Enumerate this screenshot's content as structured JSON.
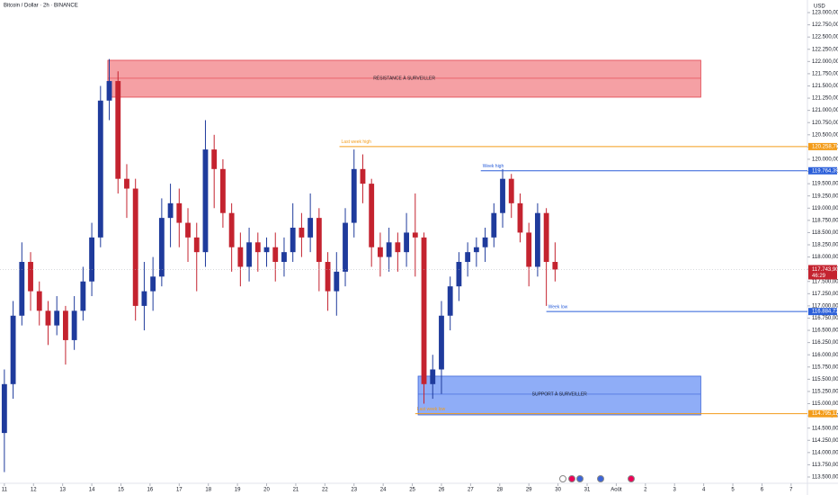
{
  "chart_data": {
    "type": "candlestick",
    "title": "Bitcoin / Dollar · 2h · BINANCE",
    "currency": "USD",
    "up_color": "#1f3b9c",
    "down_color": "#c4232f",
    "grid": false,
    "xlim": [
      -0.15,
      27.56
    ],
    "ylim": [
      113371,
      123258
    ],
    "xticks": [
      {
        "value": 0,
        "label": "11"
      },
      {
        "value": 1,
        "label": "12"
      },
      {
        "value": 2,
        "label": "13"
      },
      {
        "value": 3,
        "label": "14"
      },
      {
        "value": 4,
        "label": "15"
      },
      {
        "value": 5,
        "label": "16"
      },
      {
        "value": 6,
        "label": "17"
      },
      {
        "value": 7,
        "label": "18"
      },
      {
        "value": 8,
        "label": "19"
      },
      {
        "value": 9,
        "label": "20"
      },
      {
        "value": 10,
        "label": "21"
      },
      {
        "value": 11,
        "label": "22"
      },
      {
        "value": 12,
        "label": "23"
      },
      {
        "value": 13,
        "label": "24"
      },
      {
        "value": 14,
        "label": "25"
      },
      {
        "value": 15,
        "label": "26"
      },
      {
        "value": 16,
        "label": "27"
      },
      {
        "value": 17,
        "label": "28"
      },
      {
        "value": 18,
        "label": "29"
      },
      {
        "value": 19,
        "label": "30"
      },
      {
        "value": 20,
        "label": "31"
      },
      {
        "value": 21,
        "label": "Août"
      },
      {
        "value": 22,
        "label": "2"
      },
      {
        "value": 23,
        "label": "3"
      },
      {
        "value": 24,
        "label": "4"
      },
      {
        "value": 25,
        "label": "5"
      },
      {
        "value": 26,
        "label": "6"
      },
      {
        "value": 27,
        "label": "7"
      }
    ],
    "yticks": [
      {
        "value": 113500,
        "label": "113.500,00"
      },
      {
        "value": 113750,
        "label": "113.750,00"
      },
      {
        "value": 114000,
        "label": "114.000,00"
      },
      {
        "value": 114250,
        "label": "114.250,00"
      },
      {
        "value": 114500,
        "label": "114.500,00"
      },
      {
        "value": 114750,
        "label": "114.750,00"
      },
      {
        "value": 115000,
        "label": "115.000,00"
      },
      {
        "value": 115250,
        "label": "115.250,00"
      },
      {
        "value": 115500,
        "label": "115.500,00"
      },
      {
        "value": 115750,
        "label": "115.750,00"
      },
      {
        "value": 116000,
        "label": "116.000,00"
      },
      {
        "value": 116250,
        "label": "116.250,00"
      },
      {
        "value": 116500,
        "label": "116.500,00"
      },
      {
        "value": 116750,
        "label": "116.750,00"
      },
      {
        "value": 117000,
        "label": "117.000,00"
      },
      {
        "value": 117250,
        "label": "117.250,00"
      },
      {
        "value": 117500,
        "label": "117.500,00"
      },
      {
        "value": 117750,
        "label": "117.750,00"
      },
      {
        "value": 118000,
        "label": "118.000,00"
      },
      {
        "value": 118250,
        "label": "118.250,00"
      },
      {
        "value": 118500,
        "label": "118.500,00"
      },
      {
        "value": 118750,
        "label": "118.750,00"
      },
      {
        "value": 119000,
        "label": "119.000,00"
      },
      {
        "value": 119250,
        "label": "119.250,00"
      },
      {
        "value": 119500,
        "label": "119.500,00"
      },
      {
        "value": 119750,
        "label": "119.750,00"
      },
      {
        "value": 120000,
        "label": "120.000,00"
      },
      {
        "value": 120250,
        "label": "120.250,00"
      },
      {
        "value": 120500,
        "label": "120.500,00"
      },
      {
        "value": 120750,
        "label": "120.750,00"
      },
      {
        "value": 121000,
        "label": "121.000,00"
      },
      {
        "value": 121250,
        "label": "121.250,00"
      },
      {
        "value": 121500,
        "label": "121.500,00"
      },
      {
        "value": 121750,
        "label": "121.750,00"
      },
      {
        "value": 122000,
        "label": "122.000,00"
      },
      {
        "value": 122250,
        "label": "122.250,00"
      },
      {
        "value": 122500,
        "label": "122.500,00"
      },
      {
        "value": 122750,
        "label": "122.750,00"
      },
      {
        "value": 123000,
        "label": "123.000,00"
      }
    ],
    "x": [
      0,
      0.3,
      0.6,
      0.9,
      1.2,
      1.5,
      1.8,
      2.1,
      2.4,
      2.7,
      3,
      3.3,
      3.6,
      3.9,
      4.2,
      4.5,
      4.8,
      5.1,
      5.4,
      5.7,
      6,
      6.3,
      6.6,
      6.9,
      7.2,
      7.5,
      7.8,
      8.1,
      8.4,
      8.7,
      9,
      9.3,
      9.6,
      9.9,
      10.2,
      10.5,
      10.8,
      11.1,
      11.4,
      11.7,
      12,
      12.3,
      12.6,
      12.9,
      13.2,
      13.5,
      13.8,
      14.1,
      14.4,
      14.7,
      15,
      15.3,
      15.6,
      15.9,
      16.2,
      16.5,
      16.8,
      17.1,
      17.4,
      17.7,
      18,
      18.3,
      18.6,
      18.9
    ],
    "open": [
      114400,
      115400,
      116800,
      117900,
      117300,
      116900,
      116600,
      116900,
      116300,
      116900,
      117500,
      118400,
      121200,
      121600,
      119600,
      119400,
      117000,
      117300,
      117600,
      118800,
      119100,
      118700,
      118400,
      118100,
      120200,
      119800,
      118900,
      118200,
      117800,
      118300,
      118100,
      118200,
      117900,
      118100,
      118600,
      118400,
      118800,
      117900,
      117300,
      117700,
      118700,
      119800,
      119500,
      118200,
      118000,
      118300,
      118100,
      118500,
      118400,
      115400,
      115700,
      116800,
      117400,
      117900,
      118100,
      118200,
      118400,
      118900,
      119600,
      119100,
      118500,
      117800,
      118900,
      117900
    ],
    "high": [
      115700,
      117100,
      118300,
      118100,
      117500,
      117100,
      117200,
      117000,
      117200,
      117800,
      118700,
      121500,
      122050,
      121800,
      119900,
      119600,
      117900,
      118000,
      119200,
      119500,
      119400,
      119000,
      118700,
      120800,
      120500,
      120000,
      119100,
      118500,
      118600,
      118500,
      118400,
      118500,
      118400,
      119100,
      118900,
      119300,
      119000,
      118100,
      118100,
      119000,
      120200,
      120100,
      119600,
      118500,
      118600,
      118500,
      118900,
      119300,
      118500,
      116000,
      117100,
      117600,
      118100,
      118300,
      118400,
      118600,
      119100,
      119800,
      119700,
      119300,
      118700,
      119100,
      119000,
      118300
    ],
    "low": [
      113600,
      115100,
      116600,
      116900,
      116600,
      116200,
      116400,
      115800,
      116100,
      116700,
      117200,
      118200,
      120800,
      119300,
      118800,
      116700,
      116500,
      116900,
      117400,
      118200,
      118200,
      117900,
      117300,
      117800,
      119000,
      118600,
      117700,
      117400,
      117500,
      117700,
      117800,
      117500,
      117600,
      117900,
      118000,
      118100,
      117300,
      116900,
      116800,
      117400,
      118400,
      119100,
      117800,
      117600,
      117700,
      117700,
      117800,
      117600,
      115000,
      115100,
      115200,
      116500,
      117100,
      117600,
      117800,
      117900,
      118200,
      118600,
      118800,
      118300,
      117400,
      117600,
      117000,
      117500
    ],
    "close": [
      115400,
      116800,
      117900,
      117300,
      116900,
      116600,
      116900,
      116300,
      116900,
      117500,
      118400,
      121200,
      121600,
      119600,
      119400,
      117000,
      117300,
      117600,
      118800,
      119100,
      118700,
      118400,
      118100,
      120200,
      119800,
      118900,
      118200,
      117800,
      118300,
      118100,
      118200,
      117900,
      118100,
      118600,
      118400,
      118800,
      117900,
      117300,
      117700,
      118700,
      119800,
      119500,
      118200,
      118000,
      118300,
      118100,
      118500,
      118400,
      115400,
      115700,
      116800,
      117400,
      117900,
      118100,
      118200,
      118400,
      118900,
      119600,
      119100,
      118500,
      117800,
      118900,
      117900,
      117744
    ],
    "zones": [
      {
        "label": "RÉSISTANCE À SURVEILLER",
        "top": 122025,
        "mid": 121657,
        "bottom": 121270,
        "x_start": 3.55,
        "x_end": 23.9,
        "color": "#f5a0a4",
        "edge": "#e0424c"
      },
      {
        "label": "SUPPORT À SURVEILLER",
        "top": 115563,
        "mid": 115194,
        "bottom": 114770,
        "x_start": 14.2,
        "x_end": 23.9,
        "color": "#8fadf7",
        "edge": "#3b64d8"
      }
    ],
    "levels": [
      {
        "label": "Last week high",
        "value": 120258.7,
        "value_label": "120.258,70",
        "x_start": 11.5,
        "color": "#f39c1a"
      },
      {
        "label": "Week high",
        "value": 119764.39,
        "value_label": "119.764,39",
        "x_start": 16.35,
        "color": "#2b5fd9"
      },
      {
        "label": "Week low",
        "value": 116884.72,
        "value_label": "116.884,72",
        "x_start": 18.6,
        "color": "#2b5fd9"
      },
      {
        "label": "Last week low",
        "value": 114795.11,
        "value_label": "114.795,11",
        "x_start": 14.1,
        "color": "#f39c1a"
      }
    ],
    "last_price": {
      "value": 117743.9,
      "value_label": "117.743,90",
      "countdown": "46:29",
      "color": "#c4232f"
    }
  }
}
